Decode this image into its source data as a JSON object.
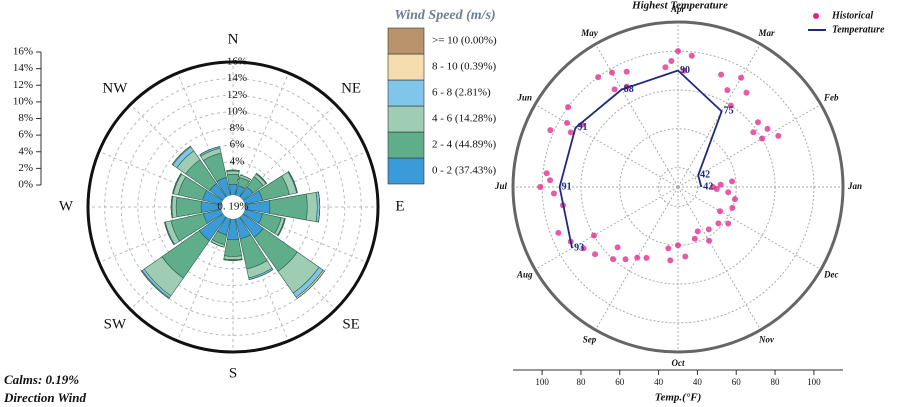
{
  "chart_data": [
    {
      "type": "windrose",
      "title": "Wind Speed (m/s)",
      "categories": [
        "N",
        null,
        "NE",
        null,
        "E",
        null,
        "SE",
        null,
        "S",
        null,
        "SW",
        null,
        "W",
        null,
        "NW",
        null
      ],
      "series": [
        {
          "name": "0 - 2 (37.43%)",
          "color": "#3b9ad8",
          "values": [
            1.3,
            1.2,
            1.5,
            2.2,
            3.0,
            2.2,
            3.0,
            2.5,
            2.5,
            2.0,
            3.5,
            2.2,
            2.4,
            2.3,
            2.0,
            2.2
          ]
        },
        {
          "name": "2 - 4 (44.89%)",
          "color": "#5fad8b",
          "values": [
            1.2,
            1.0,
            1.5,
            3.3,
            4.5,
            2.3,
            5.0,
            3.7,
            2.0,
            1.2,
            5.5,
            4.0,
            3.0,
            3.0,
            3.5,
            3.0
          ]
        },
        {
          "name": "4 - 6 (14.28%)",
          "color": "#9ecdb4",
          "values": [
            0.4,
            0.3,
            0.4,
            0.9,
            1.2,
            0.4,
            3.2,
            1.1,
            0.4,
            0.3,
            2.6,
            0.7,
            0.5,
            0.6,
            1.3,
            0.6
          ]
        },
        {
          "name": "6 - 8 (2.81%)",
          "color": "#80c6ea",
          "values": [
            0.1,
            0,
            0.1,
            0.1,
            0.3,
            0.1,
            0.6,
            0.2,
            0.1,
            0,
            0.3,
            0.1,
            0.1,
            0.1,
            0.6,
            0.2
          ]
        },
        {
          "name": "8 - 10 (0.39%)",
          "color": "#f5dcae",
          "values": [
            0,
            0,
            0,
            0,
            0,
            0,
            0.2,
            0,
            0,
            0,
            0.1,
            0,
            0,
            0,
            0.1,
            0
          ]
        },
        {
          "name": ">= 10 (0.00%)",
          "color": "#b8936b",
          "values": [
            0,
            0,
            0,
            0,
            0,
            0,
            0,
            0,
            0,
            0,
            0,
            0,
            0,
            0,
            0,
            0
          ]
        }
      ],
      "ylim": [
        0,
        16
      ],
      "yticks": [
        {
          "value": 0,
          "label": "0%"
        },
        {
          "value": 2,
          "label": "2%"
        },
        {
          "value": 4,
          "label": "4%"
        },
        {
          "value": 6,
          "label": "6%"
        },
        {
          "value": 8,
          "label": "8%"
        },
        {
          "value": 10,
          "label": "10%"
        },
        {
          "value": 12,
          "label": "12%"
        },
        {
          "value": 14,
          "label": "14%"
        },
        {
          "value": 16,
          "label": "16%"
        }
      ],
      "annotations": [
        "Calms: 0.19%",
        "Direction Wind",
        "0. 19%"
      ]
    },
    {
      "type": "polar",
      "title": "Highest Temperature",
      "xlabel": "Temp.(°F)",
      "categories": [
        "Jan",
        "Feb",
        "Mar",
        "Apr",
        "May",
        "Jun",
        "Jul",
        "Aug",
        "Sep",
        "Oct",
        "Nov",
        "Dec"
      ],
      "series": [
        {
          "name": "Historical",
          "type": "scatter",
          "color": "#e0218a",
          "x": [
            1.0,
            1.1,
            12.8,
            12.6,
            1.2,
            12.9,
            2.0,
            2.1,
            2.2,
            1.9,
            2.3,
            2.8,
            3.0,
            3.1,
            3.3,
            2.9,
            3.8,
            4.0,
            4.1,
            4.2,
            3.9,
            4.8,
            5.0,
            5.1,
            5.2,
            4.9,
            5.8,
            6.0,
            6.2,
            6.1,
            5.9,
            6.8,
            7.0,
            7.1,
            7.3,
            6.9,
            7.7,
            7.9,
            8.1,
            8.3,
            8.0,
            8.6,
            8.8,
            9.0,
            9.2,
            8.5,
            9.7,
            10.0,
            10.2,
            9.8,
            10.6,
            10.8,
            11.0,
            11.2,
            11.6,
            11.8,
            12.0,
            12.3
          ],
          "values": [
            48,
            52,
            56,
            60,
            58,
            50,
            80,
            85,
            78,
            88,
            83,
            90,
            95,
            86,
            92,
            80,
            98,
            100,
            95,
            92,
            90,
            95,
            98,
            90,
            100,
            88,
            100,
            96,
            102,
            92,
            89,
            98,
            101,
            94,
            90,
            96,
            96,
            92,
            88,
            85,
            80,
            80,
            76,
            72,
            70,
            74,
            62,
            60,
            66,
            68,
            58,
            55,
            62,
            57,
            58,
            62,
            55,
            60
          ]
        },
        {
          "name": "Temperature",
          "type": "line",
          "color": "#1f2a7c",
          "values": [
            42,
            42,
            75,
            90,
            88,
            91,
            91,
            93,
            null,
            null,
            null,
            null
          ]
        }
      ],
      "ylim": [
        30,
        115
      ],
      "yticks": [
        40,
        60,
        80,
        100
      ]
    }
  ]
}
